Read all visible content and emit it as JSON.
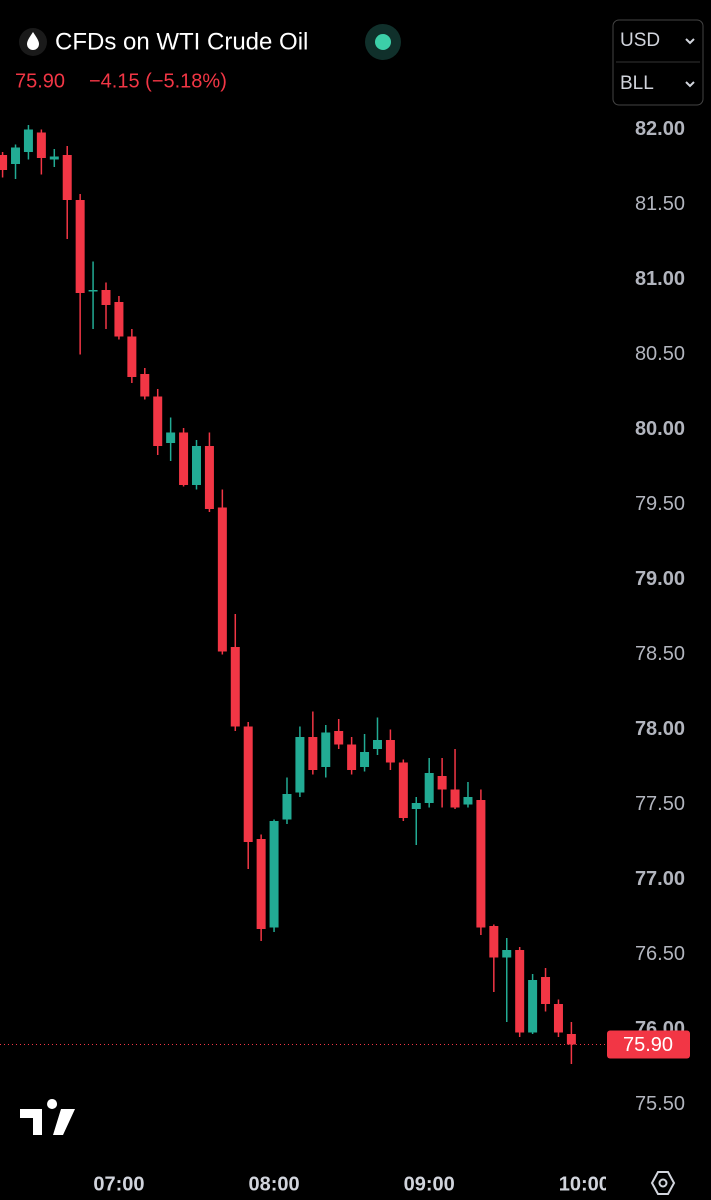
{
  "header": {
    "title": "CFDs on WTI Crude Oil",
    "change": "−4.15 (−5.18%)",
    "currency": "USD",
    "unit": "BLL"
  },
  "chart_data": {
    "type": "candlestick",
    "up_color": "#22ab94",
    "down_color": "#f23645",
    "x": [
      "06:15",
      "06:20",
      "06:25",
      "06:30",
      "06:35",
      "06:40",
      "06:45",
      "06:50",
      "06:55",
      "07:00",
      "07:05",
      "07:10",
      "07:15",
      "07:20",
      "07:25",
      "07:30",
      "07:35",
      "07:40",
      "07:45",
      "07:50",
      "07:55",
      "08:00",
      "08:05",
      "08:10",
      "08:15",
      "08:20",
      "08:25",
      "08:30",
      "08:35",
      "08:40",
      "08:45",
      "08:50",
      "08:55",
      "09:00",
      "09:05",
      "09:10",
      "09:15",
      "09:20",
      "09:25",
      "09:30",
      "09:35",
      "09:40",
      "09:45",
      "09:50",
      "09:55"
    ],
    "open": [
      81.83,
      81.77,
      81.85,
      81.98,
      81.8,
      81.83,
      81.53,
      80.92,
      80.93,
      80.85,
      80.62,
      80.37,
      80.22,
      79.91,
      79.98,
      79.63,
      79.89,
      79.48,
      78.55,
      78.02,
      77.27,
      76.68,
      77.4,
      77.58,
      77.95,
      77.75,
      77.99,
      77.9,
      77.75,
      77.87,
      77.93,
      77.78,
      77.47,
      77.51,
      77.69,
      77.6,
      77.5,
      77.53,
      76.69,
      76.48,
      76.53,
      75.98,
      76.35,
      76.17,
      75.97
    ],
    "high": [
      81.85,
      81.9,
      82.03,
      82.0,
      81.87,
      81.89,
      81.57,
      81.12,
      80.98,
      80.89,
      80.67,
      80.41,
      80.27,
      80.08,
      80.01,
      79.93,
      79.98,
      79.6,
      78.77,
      78.05,
      77.3,
      77.4,
      77.68,
      78.02,
      78.12,
      78.03,
      78.07,
      77.95,
      77.97,
      78.08,
      78.0,
      77.8,
      77.55,
      77.81,
      77.81,
      77.87,
      77.65,
      77.6,
      76.7,
      76.61,
      76.55,
      76.37,
      76.41,
      76.2,
      76.05
    ],
    "low": [
      81.68,
      81.67,
      81.8,
      81.7,
      81.75,
      81.27,
      80.5,
      80.67,
      80.67,
      80.6,
      80.31,
      80.2,
      79.83,
      79.79,
      79.62,
      79.6,
      79.45,
      78.5,
      77.99,
      77.07,
      76.59,
      76.65,
      77.37,
      77.55,
      77.7,
      77.68,
      77.87,
      77.7,
      77.72,
      77.83,
      77.73,
      77.39,
      77.23,
      77.48,
      77.48,
      77.47,
      77.48,
      76.63,
      76.25,
      76.05,
      75.95,
      75.97,
      76.12,
      75.95,
      75.77
    ],
    "close": [
      81.73,
      81.88,
      82.0,
      81.81,
      81.82,
      81.53,
      80.91,
      80.93,
      80.83,
      80.62,
      80.35,
      80.22,
      79.89,
      79.98,
      79.63,
      79.89,
      79.47,
      78.52,
      78.02,
      77.25,
      76.67,
      77.39,
      77.57,
      77.95,
      77.73,
      77.98,
      77.9,
      77.73,
      77.85,
      77.93,
      77.78,
      77.41,
      77.51,
      77.71,
      77.6,
      77.48,
      77.55,
      76.68,
      76.48,
      76.53,
      75.98,
      76.33,
      76.17,
      75.98,
      75.9
    ],
    "xlim": [
      "06:14",
      "10:08"
    ],
    "xticks": [
      "07:00",
      "08:00",
      "09:00",
      "10:00"
    ],
    "ylim": [
      75.13,
      82.13
    ],
    "yticks": [
      {
        "value": 75.5,
        "label": "75.50"
      },
      {
        "value": 76,
        "label": "76.00"
      },
      {
        "value": 76.5,
        "label": "76.50"
      },
      {
        "value": 77,
        "label": "77.00"
      },
      {
        "value": 77.5,
        "label": "77.50"
      },
      {
        "value": 78,
        "label": "78.00"
      },
      {
        "value": 78.5,
        "label": "78.50"
      },
      {
        "value": 79,
        "label": "79.00"
      },
      {
        "value": 79.5,
        "label": "79.50"
      },
      {
        "value": 80,
        "label": "80.00"
      },
      {
        "value": 80.5,
        "label": "80.50"
      },
      {
        "value": 81,
        "label": "81.00"
      },
      {
        "value": 81.5,
        "label": "81.50"
      },
      {
        "value": 82,
        "label": "82.00"
      }
    ],
    "price_line": {
      "value": 75.9,
      "label": "75.90"
    }
  }
}
